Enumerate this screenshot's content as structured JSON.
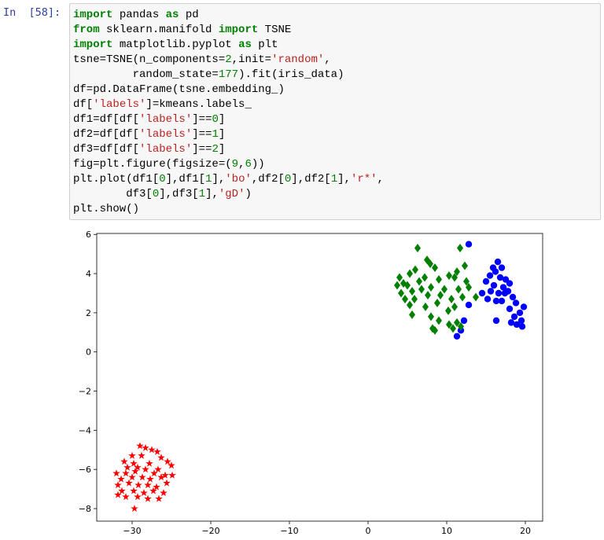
{
  "prompt": "In  [58]:",
  "code": {
    "lines": [
      "import pandas as pd",
      "from sklearn.manifold import TSNE",
      "import matplotlib.pyplot as plt",
      "tsne=TSNE(n_components=2,init='random',",
      "         random_state=177).fit(iris_data)",
      "df=pd.DataFrame(tsne.embedding_)",
      "df['labels']=kmeans.labels_",
      "df1=df[df['labels']==0]",
      "df2=df[df['labels']==1]",
      "df3=df[df['labels']==2]",
      "fig=plt.figure(figsize=(9,6))",
      "plt.plot(df1[0],df1[1],'bo',df2[0],df2[1],'r*',",
      "        df3[0],df3[1],'gD')",
      "plt.show()"
    ]
  },
  "chart_data": {
    "type": "scatter",
    "xlim": [
      -34.5,
      22.2
    ],
    "ylim": [
      -8.64,
      6.05
    ],
    "xticks": [
      {
        "value": -30,
        "label": "−30"
      },
      {
        "value": -20,
        "label": "−20"
      },
      {
        "value": -10,
        "label": "−10"
      },
      0,
      10,
      20
    ],
    "yticks": [
      {
        "value": -8,
        "label": "−8"
      },
      {
        "value": -6,
        "label": "−6"
      },
      {
        "value": -4,
        "label": "−4"
      },
      {
        "value": -2,
        "label": "−2"
      },
      0,
      2,
      4,
      6
    ],
    "series": [
      {
        "color": "#0000ff",
        "marker": "circle",
        "x": [
          16.5,
          17.0,
          16.2,
          15.5,
          16.8,
          17.5,
          15.0,
          16.0,
          17.2,
          18.0,
          15.6,
          16.6,
          17.4,
          14.5,
          18.4,
          15.2,
          16.3,
          17.0,
          18.8,
          19.8,
          18.0,
          19.3,
          18.6,
          19.5,
          16.3,
          18.2,
          18.9,
          19.6,
          17.8,
          15.9,
          12.8,
          11.8,
          11.3,
          12.2,
          12.8
        ],
        "y": [
          4.6,
          4.3,
          4.1,
          3.9,
          3.8,
          3.7,
          3.6,
          3.4,
          3.3,
          3.5,
          3.1,
          3.0,
          3.0,
          3.0,
          2.8,
          2.7,
          2.6,
          2.6,
          2.5,
          2.3,
          2.2,
          2.0,
          1.8,
          1.6,
          1.6,
          1.5,
          1.4,
          1.3,
          3.1,
          4.3,
          5.5,
          1.1,
          0.8,
          1.6,
          2.4
        ]
      },
      {
        "color": "#ff0000",
        "marker": "star",
        "x": [
          -29.0,
          -28.3,
          -27.5,
          -26.8,
          -30.0,
          -28.8,
          -26.3,
          -25.5,
          -31.0,
          -29.8,
          -27.8,
          -25.0,
          -30.6,
          -29.3,
          -28.3,
          -26.7,
          -32.0,
          -30.8,
          -29.6,
          -27.2,
          -25.8,
          -24.9,
          -31.4,
          -30.0,
          -28.7,
          -27.7,
          -26.3,
          -31.8,
          -30.4,
          -29.2,
          -28.0,
          -26.9,
          -25.6,
          -31.3,
          -29.8,
          -28.5,
          -27.3,
          -26.0,
          -31.8,
          -30.8,
          -29.3,
          -28.0,
          -26.6,
          -29.7
        ],
        "y": [
          -4.8,
          -4.9,
          -5.0,
          -5.1,
          -5.3,
          -5.3,
          -5.4,
          -5.6,
          -5.6,
          -5.7,
          -5.7,
          -5.8,
          -5.9,
          -5.9,
          -6.0,
          -6.0,
          -6.2,
          -6.2,
          -6.1,
          -6.2,
          -6.3,
          -6.3,
          -6.5,
          -6.4,
          -6.4,
          -6.5,
          -6.4,
          -6.8,
          -6.7,
          -6.8,
          -6.8,
          -6.9,
          -6.7,
          -7.1,
          -7.1,
          -7.2,
          -7.1,
          -7.2,
          -7.3,
          -7.4,
          -7.4,
          -7.5,
          -7.5,
          -8.0
        ]
      },
      {
        "color": "#008000",
        "marker": "diamond",
        "x": [
          6.3,
          7.5,
          8.5,
          7.9,
          11.7,
          12.3,
          11.3,
          6.0,
          5.3,
          4.0,
          4.5,
          3.7,
          5.0,
          6.5,
          7.2,
          8.0,
          9.0,
          10.3,
          11.0,
          12.5,
          4.2,
          5.6,
          6.8,
          9.7,
          11.5,
          12.8,
          4.7,
          5.9,
          7.6,
          9.2,
          10.6,
          12.0,
          13.7,
          5.3,
          7.3,
          8.8,
          10.2,
          11.0,
          5.6,
          8.0,
          10.3,
          11.3,
          11.8,
          9.0,
          8.2,
          8.5,
          10.8
        ],
        "y": [
          5.3,
          4.7,
          4.3,
          4.5,
          5.3,
          4.4,
          4.1,
          4.2,
          4.0,
          3.8,
          3.5,
          3.4,
          3.4,
          3.6,
          3.8,
          3.3,
          3.7,
          3.9,
          3.8,
          3.6,
          3.0,
          3.1,
          3.2,
          3.2,
          3.2,
          3.3,
          2.7,
          2.7,
          2.9,
          2.9,
          2.7,
          2.8,
          2.8,
          2.4,
          2.3,
          2.5,
          2.1,
          2.3,
          1.9,
          1.8,
          1.4,
          1.5,
          1.3,
          1.6,
          1.2,
          1.1,
          1.2
        ]
      }
    ]
  }
}
